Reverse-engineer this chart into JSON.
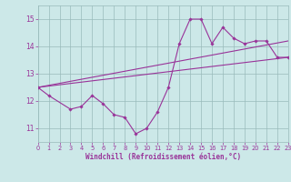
{
  "xlabel": "Windchill (Refroidissement éolien,°C)",
  "xlim": [
    0,
    23
  ],
  "ylim": [
    10.5,
    15.5
  ],
  "yticks": [
    11,
    12,
    13,
    14,
    15
  ],
  "xticks": [
    0,
    1,
    2,
    3,
    4,
    5,
    6,
    7,
    8,
    9,
    10,
    11,
    12,
    13,
    14,
    15,
    16,
    17,
    18,
    19,
    20,
    21,
    22,
    23
  ],
  "bg_color": "#cce8e8",
  "line_color": "#993399",
  "grid_color": "#99bbbb",
  "series1_x": [
    0,
    1,
    3,
    4,
    5,
    6,
    7,
    8,
    9,
    10,
    11,
    12,
    13,
    14,
    15,
    16,
    17,
    18,
    19,
    20,
    21,
    22,
    23
  ],
  "series1_y": [
    12.5,
    12.2,
    11.7,
    11.8,
    12.2,
    11.9,
    11.5,
    11.4,
    10.8,
    11.0,
    11.6,
    12.5,
    14.1,
    15.0,
    15.0,
    14.1,
    14.7,
    14.3,
    14.1,
    14.2,
    14.2,
    13.6,
    13.6
  ],
  "series2_x": [
    0,
    23
  ],
  "series2_y": [
    12.5,
    13.6
  ],
  "series3_x": [
    0,
    23
  ],
  "series3_y": [
    12.5,
    14.2
  ]
}
